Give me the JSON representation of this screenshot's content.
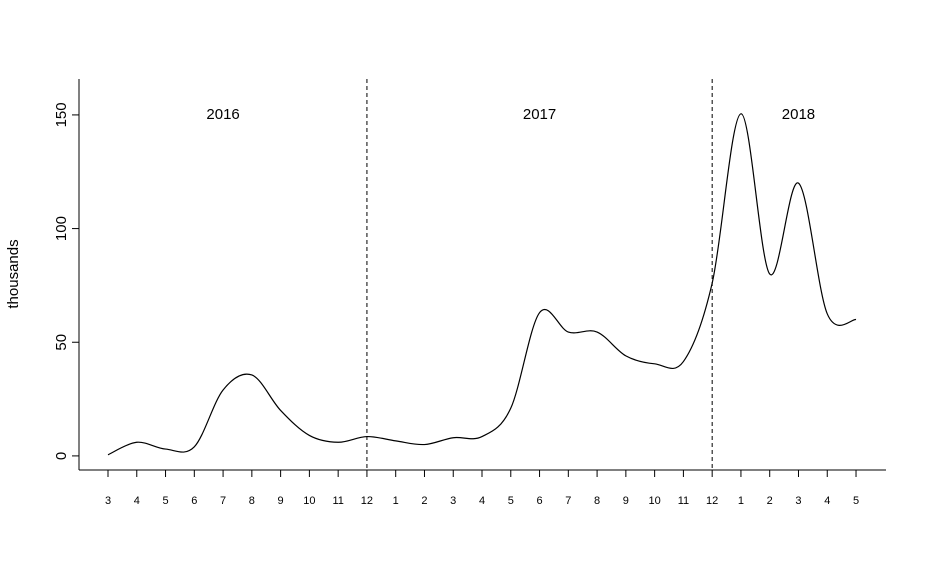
{
  "chart_data": {
    "type": "line",
    "y_label": "thousands",
    "categories": [
      "3",
      "4",
      "5",
      "6",
      "7",
      "8",
      "9",
      "10",
      "11",
      "12",
      "1",
      "2",
      "3",
      "4",
      "5",
      "6",
      "7",
      "8",
      "9",
      "10",
      "11",
      "12",
      "1",
      "2",
      "3",
      "4",
      "5"
    ],
    "values": [
      0.5,
      6,
      3,
      4,
      29,
      35.6,
      20,
      9,
      6,
      8.5,
      6.6,
      5,
      8,
      8.5,
      21,
      63,
      54.5,
      54.5,
      44,
      40.5,
      41.5,
      76,
      150.5,
      80,
      120,
      62.5,
      60
    ],
    "color": "#000000",
    "ylim": [
      -6.2,
      165.8
    ],
    "yticks": [
      0,
      50,
      100,
      150
    ],
    "annotations": [
      "2016",
      "2017",
      "2018"
    ]
  }
}
